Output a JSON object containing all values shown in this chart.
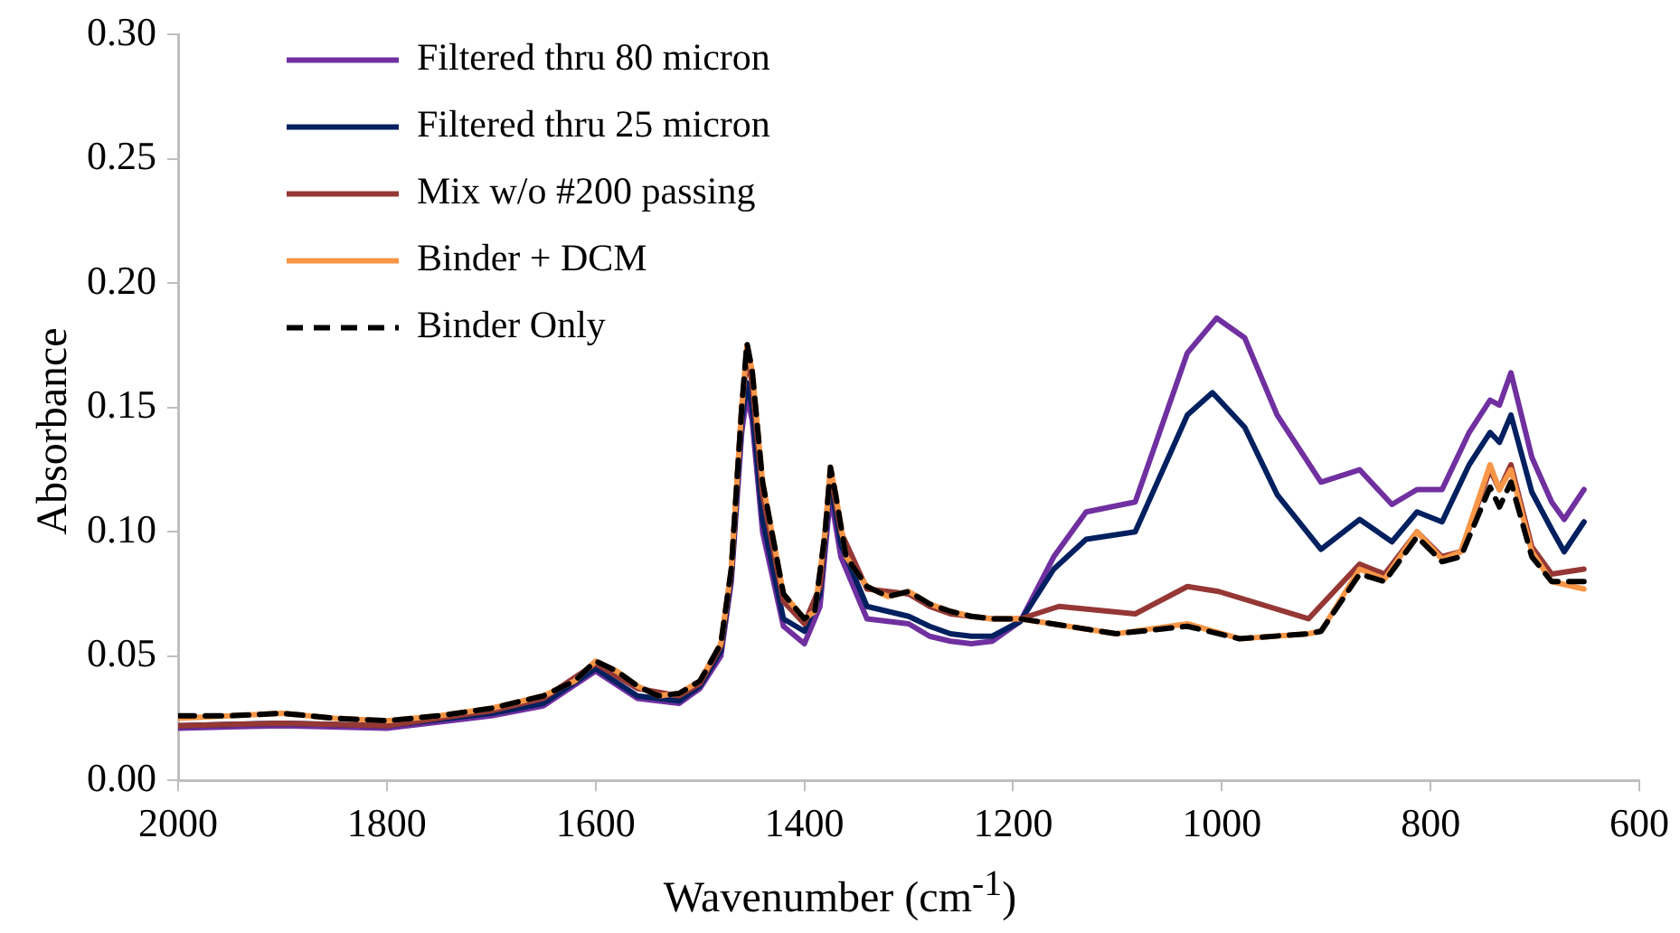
{
  "chart_data": {
    "type": "line",
    "xlabel": "Wavenumber (cm$^{-1}$)",
    "ylabel": "Absorbance",
    "xlim": [
      2000,
      600
    ],
    "xticks": [
      2000,
      1800,
      1600,
      1400,
      1200,
      1000,
      800,
      600
    ],
    "ylim": [
      0,
      0.3
    ],
    "yticks": [
      {
        "value": 0,
        "label": "0.00"
      },
      {
        "value": 0.05,
        "label": "0.05"
      },
      {
        "value": 0.1,
        "label": "0.10"
      },
      {
        "value": 0.15,
        "label": "0.15"
      },
      {
        "value": 0.2,
        "label": "0.20"
      },
      {
        "value": 0.25,
        "label": "0.25"
      },
      {
        "value": 0.3,
        "label": "0.30"
      }
    ],
    "grid": false,
    "legend": "top left",
    "marker": "none",
    "series": [
      {
        "name": "Filtered thru 80 micron",
        "color": "#7030a0",
        "x": [
          2000,
          1900,
          1800,
          1700,
          1650,
          1600,
          1560,
          1520,
          1500,
          1480,
          1470,
          1460,
          1455,
          1450,
          1440,
          1420,
          1400,
          1385,
          1375,
          1365,
          1340,
          1300,
          1280,
          1260,
          1240,
          1220,
          1193,
          1161,
          1130,
          1083,
          1033,
          1005,
          978,
          947,
          905,
          868,
          837,
          813,
          789,
          763,
          743,
          734,
          723,
          703,
          684,
          672,
          653
        ],
        "values": [
          0.021,
          0.022,
          0.021,
          0.026,
          0.03,
          0.044,
          0.033,
          0.031,
          0.037,
          0.05,
          0.08,
          0.14,
          0.155,
          0.145,
          0.1,
          0.062,
          0.055,
          0.07,
          0.115,
          0.09,
          0.065,
          0.063,
          0.058,
          0.056,
          0.055,
          0.056,
          0.064,
          0.09,
          0.108,
          0.112,
          0.172,
          0.186,
          0.178,
          0.147,
          0.12,
          0.125,
          0.111,
          0.117,
          0.117,
          0.14,
          0.153,
          0.151,
          0.164,
          0.13,
          0.112,
          0.105,
          0.117
        ]
      },
      {
        "name": "Filtered thru 25 micron",
        "color": "#002060",
        "x": [
          2000,
          1900,
          1800,
          1700,
          1650,
          1600,
          1560,
          1520,
          1500,
          1480,
          1470,
          1460,
          1455,
          1450,
          1440,
          1420,
          1400,
          1385,
          1375,
          1365,
          1340,
          1300,
          1280,
          1260,
          1240,
          1220,
          1193,
          1161,
          1130,
          1083,
          1033,
          1009,
          978,
          947,
          905,
          868,
          837,
          813,
          789,
          763,
          743,
          734,
          723,
          703,
          684,
          672,
          653
        ],
        "values": [
          0.022,
          0.023,
          0.022,
          0.027,
          0.031,
          0.045,
          0.034,
          0.032,
          0.038,
          0.052,
          0.082,
          0.145,
          0.16,
          0.15,
          0.105,
          0.065,
          0.06,
          0.075,
          0.12,
          0.095,
          0.07,
          0.066,
          0.062,
          0.059,
          0.058,
          0.058,
          0.064,
          0.085,
          0.097,
          0.1,
          0.147,
          0.156,
          0.142,
          0.115,
          0.093,
          0.105,
          0.096,
          0.108,
          0.104,
          0.127,
          0.14,
          0.136,
          0.147,
          0.116,
          0.101,
          0.092,
          0.104
        ]
      },
      {
        "name": "Mix w/o #200 passing",
        "color": "#953735",
        "x": [
          2000,
          1900,
          1800,
          1700,
          1650,
          1600,
          1560,
          1520,
          1500,
          1480,
          1470,
          1460,
          1455,
          1450,
          1440,
          1420,
          1400,
          1385,
          1375,
          1365,
          1340,
          1300,
          1280,
          1260,
          1240,
          1220,
          1193,
          1156,
          1083,
          1033,
          1003,
          917,
          868,
          844,
          813,
          789,
          771,
          743,
          734,
          723,
          703,
          684,
          653
        ],
        "values": [
          0.022,
          0.023,
          0.022,
          0.028,
          0.033,
          0.047,
          0.037,
          0.034,
          0.039,
          0.054,
          0.084,
          0.15,
          0.17,
          0.16,
          0.115,
          0.072,
          0.063,
          0.078,
          0.124,
          0.1,
          0.077,
          0.075,
          0.07,
          0.067,
          0.066,
          0.065,
          0.065,
          0.07,
          0.067,
          0.078,
          0.076,
          0.065,
          0.087,
          0.083,
          0.1,
          0.09,
          0.092,
          0.125,
          0.117,
          0.127,
          0.094,
          0.083,
          0.085
        ]
      },
      {
        "name": "Binder + DCM",
        "color": "#f79646",
        "x": [
          2000,
          1950,
          1900,
          1850,
          1800,
          1750,
          1700,
          1650,
          1620,
          1600,
          1580,
          1560,
          1540,
          1520,
          1500,
          1480,
          1470,
          1460,
          1455,
          1450,
          1440,
          1420,
          1400,
          1390,
          1380,
          1375,
          1370,
          1360,
          1340,
          1320,
          1300,
          1280,
          1260,
          1240,
          1220,
          1193,
          1101,
          1033,
          983,
          917,
          905,
          868,
          844,
          813,
          789,
          771,
          743,
          734,
          723,
          703,
          684,
          653
        ],
        "values": [
          0.025,
          0.026,
          0.027,
          0.025,
          0.024,
          0.026,
          0.029,
          0.034,
          0.04,
          0.048,
          0.044,
          0.038,
          0.034,
          0.035,
          0.04,
          0.055,
          0.085,
          0.15,
          0.175,
          0.165,
          0.12,
          0.075,
          0.065,
          0.068,
          0.1,
          0.126,
          0.115,
          0.09,
          0.078,
          0.074,
          0.076,
          0.071,
          0.068,
          0.066,
          0.065,
          0.065,
          0.059,
          0.063,
          0.057,
          0.059,
          0.06,
          0.085,
          0.081,
          0.1,
          0.089,
          0.092,
          0.127,
          0.117,
          0.125,
          0.092,
          0.08,
          0.077
        ]
      },
      {
        "name": "Binder Only",
        "color": "#000000",
        "line_style": "dashed",
        "x": [
          2000,
          1950,
          1900,
          1850,
          1800,
          1750,
          1700,
          1650,
          1620,
          1600,
          1580,
          1560,
          1540,
          1520,
          1500,
          1480,
          1470,
          1460,
          1455,
          1450,
          1440,
          1420,
          1400,
          1390,
          1380,
          1375,
          1370,
          1360,
          1340,
          1320,
          1300,
          1280,
          1260,
          1240,
          1220,
          1193,
          1101,
          1033,
          983,
          917,
          905,
          868,
          844,
          813,
          789,
          771,
          743,
          734,
          723,
          703,
          684,
          653
        ],
        "values": [
          0.026,
          0.026,
          0.027,
          0.025,
          0.024,
          0.026,
          0.029,
          0.034,
          0.04,
          0.048,
          0.044,
          0.038,
          0.034,
          0.035,
          0.04,
          0.055,
          0.085,
          0.15,
          0.176,
          0.165,
          0.12,
          0.075,
          0.065,
          0.068,
          0.1,
          0.126,
          0.115,
          0.09,
          0.078,
          0.074,
          0.076,
          0.071,
          0.068,
          0.066,
          0.065,
          0.065,
          0.059,
          0.062,
          0.057,
          0.059,
          0.06,
          0.083,
          0.08,
          0.098,
          0.088,
          0.09,
          0.118,
          0.11,
          0.12,
          0.09,
          0.08,
          0.08
        ]
      }
    ]
  }
}
